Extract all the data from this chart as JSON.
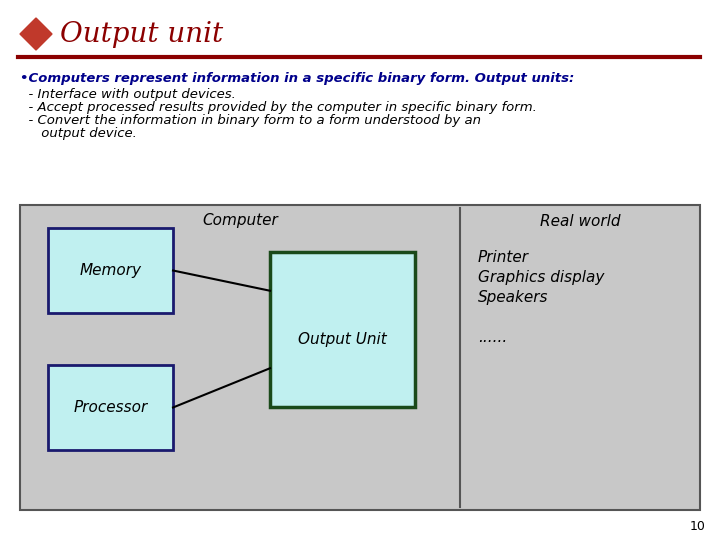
{
  "title": "Output unit",
  "title_color": "#8B0000",
  "diamond_color_top": "#C0392B",
  "diamond_color_bottom": "#8B0000",
  "separator_color": "#8B0000",
  "bullet_text": "•Computers represent information in a specific binary form. Output units:",
  "bullet_color": "#00008B",
  "sub_bullets": [
    "  - Interface with output devices.",
    "  - Accept processed results provided by the computer in specific binary form.",
    "  - Convert the information in binary form to a form understood by an",
    "     output device."
  ],
  "sub_bullet_color": "#000000",
  "diagram_bg": "#C8C8C8",
  "diagram_border": "#555555",
  "computer_label": "Computer",
  "real_world_label": "Real world",
  "memory_label": "Memory",
  "processor_label": "Processor",
  "output_unit_label": "Output Unit",
  "real_world_items": [
    "Printer",
    "Graphics display",
    "Speakers",
    "",
    "......"
  ],
  "box_fill_light": "#C0F0F0",
  "box_border_memory": "#1a1a6e",
  "box_border_output": "#1a4a1a",
  "line_color": "#000000",
  "page_number": "10",
  "bg_color": "#FFFFFF",
  "fig_w": 7.2,
  "fig_h": 5.4,
  "dpi": 100
}
